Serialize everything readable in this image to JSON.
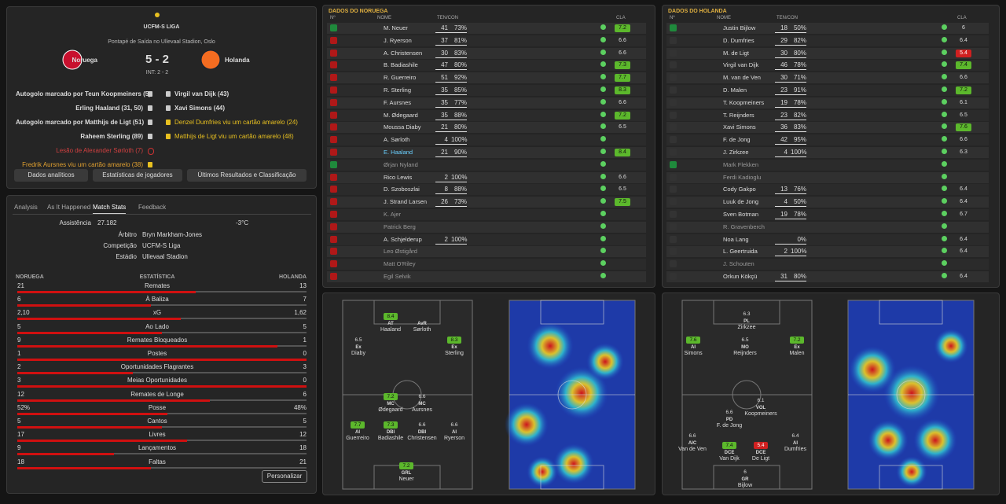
{
  "match": {
    "league": "UCFM-S LIGA",
    "venue": "Pontapé de Saída no Ullevaal Stadion, Oslo",
    "home": "Noruega",
    "away": "Holanda",
    "score": "5 - 2",
    "half_time": "INT: 2 - 2",
    "home_events": [
      {
        "text": "Autogolo marcado por Teun Koopmeiners (5)",
        "icon": "goal"
      },
      {
        "text": "Erling Haaland (31, 50)",
        "icon": "goal"
      },
      {
        "text": "Autogolo marcado por Matthijs de Ligt (51)",
        "icon": "goal"
      },
      {
        "text": "Raheem Sterling (89)",
        "icon": "goal"
      },
      {
        "text": "Lesão de Alexander Sørloth (7)",
        "icon": "injury"
      },
      {
        "text": "Fredrik Aursnes viu um cartão amarelo (38)",
        "icon": "card"
      }
    ],
    "away_events": [
      {
        "text": "Virgil van Dijk (43)",
        "icon": "goal"
      },
      {
        "text": "Xavi Simons (44)",
        "icon": "goal"
      },
      {
        "text": "Denzel Dumfries viu um cartão amarelo (24)",
        "icon": "card"
      },
      {
        "text": "Matthijs de Ligt viu um cartão amarelo (48)",
        "icon": "card"
      }
    ]
  },
  "buttons": [
    "Dados analíticos",
    "Estatísticas de jogadores",
    "Últimos Resultados e Classificação"
  ],
  "tabs": [
    "Analysis",
    "As It Happened",
    "Match Stats",
    "Feedback"
  ],
  "info": {
    "attendance_label": "Assistência",
    "attendance": "27.182",
    "temperature": "-3°C",
    "referee_label": "Árbitro",
    "referee": "Bryn Markham-Jones",
    "competition_label": "Competição",
    "competition": "UCFM-S Liga",
    "stadium_label": "Estádio",
    "stadium": "Ullevaal Stadion"
  },
  "stats": {
    "home_header": "NORUEGA",
    "label_header": "ESTATÍSTICA",
    "away_header": "HOLANDA",
    "rows": [
      {
        "name": "Remates",
        "home": 21,
        "away": 13
      },
      {
        "name": "À Baliza",
        "home": 6,
        "away": 7
      },
      {
        "name": "xG",
        "home": 2.1,
        "away": 1.62,
        "home_label": "2,10",
        "away_label": "1,62"
      },
      {
        "name": "Ao Lado",
        "home": 5,
        "away": 5
      },
      {
        "name": "Remates Bloqueados",
        "home": 9,
        "away": 1
      },
      {
        "name": "Postes",
        "home": 1,
        "away": 0
      },
      {
        "name": "Oportunidades Flagrantes",
        "home": 2,
        "away": 3
      },
      {
        "name": "Meias Oportunidades",
        "home": 3,
        "away": 0
      },
      {
        "name": "Remates de Longe",
        "home": 12,
        "away": 6
      },
      {
        "name": "Posse",
        "home": 52,
        "away": 48,
        "home_label": "52%",
        "away_label": "48%"
      },
      {
        "name": "Cantos",
        "home": 5,
        "away": 5
      },
      {
        "name": "Livres",
        "home": 17,
        "away": 12
      },
      {
        "name": "Lançamentos",
        "home": 9,
        "away": 18
      },
      {
        "name": "Faltas",
        "home": 18,
        "away": 21
      }
    ]
  },
  "customize": "Personalizar",
  "tables": [
    {
      "title": "DADOS DO NORUEGA",
      "columns": [
        "Nº",
        "NOME",
        "TEN/CON",
        "CLA"
      ],
      "players": [
        {
          "name": "M. Neuer",
          "passes": 41,
          "pct": "73%",
          "rating": 7.2
        },
        {
          "name": "J. Ryerson",
          "passes": 37,
          "pct": "81%",
          "rating": 6.6
        },
        {
          "name": "A. Christensen",
          "passes": 30,
          "pct": "83%",
          "rating": 6.6
        },
        {
          "name": "B. Badiashile",
          "passes": 47,
          "pct": "80%",
          "rating": 7.3
        },
        {
          "name": "R. Guerreiro",
          "passes": 51,
          "pct": "92%",
          "rating": 7.7
        },
        {
          "name": "R. Sterling",
          "passes": 35,
          "pct": "85%",
          "rating": 8.3
        },
        {
          "name": "F. Aursnes",
          "passes": 35,
          "pct": "77%",
          "rating": 6.6
        },
        {
          "name": "M. Ødegaard",
          "passes": 35,
          "pct": "88%",
          "rating": 7.2
        },
        {
          "name": "Moussa Diaby",
          "passes": 21,
          "pct": "80%",
          "rating": 6.5
        },
        {
          "name": "A. Sørloth",
          "passes": 4,
          "pct": "100%"
        },
        {
          "name": "E. Haaland",
          "passes": 21,
          "pct": "90%",
          "rating": 8.4
        },
        {
          "name": "Ørjan Nyland"
        },
        {
          "name": "Rico Lewis",
          "passes": 2,
          "pct": "100%",
          "rating": 6.6
        },
        {
          "name": "D. Szoboszlai",
          "passes": 8,
          "pct": "88%",
          "rating": 6.5
        },
        {
          "name": "J. Strand Larsen",
          "passes": 26,
          "pct": "73%",
          "rating": 7.5
        },
        {
          "name": "K. Ajer"
        },
        {
          "name": "Patrick Berg"
        },
        {
          "name": "A. Schjelderup",
          "passes": 2,
          "pct": "100%"
        },
        {
          "name": "Leo Østigård"
        },
        {
          "name": "Matt O'Riley"
        },
        {
          "name": "Egil Selvik"
        }
      ]
    },
    {
      "title": "DADOS DO HOLANDA",
      "columns": [
        "Nº",
        "NOME",
        "TEN/CON",
        "CLA"
      ],
      "players": [
        {
          "name": "Justin Bijlow",
          "passes": 18,
          "pct": "50%",
          "rating": 6.0
        },
        {
          "name": "D. Dumfries",
          "passes": 29,
          "pct": "82%",
          "rating": 6.4
        },
        {
          "name": "M. de Ligt",
          "passes": 30,
          "pct": "80%",
          "rating": 5.4
        },
        {
          "name": "Virgil van Dijk",
          "passes": 46,
          "pct": "78%",
          "rating": 7.4
        },
        {
          "name": "M. van de Ven",
          "passes": 30,
          "pct": "71%",
          "rating": 6.6
        },
        {
          "name": "D. Malen",
          "passes": 23,
          "pct": "91%",
          "rating": 7.2
        },
        {
          "name": "T. Koopmeiners",
          "passes": 19,
          "pct": "78%",
          "rating": 6.1
        },
        {
          "name": "T. Reijnders",
          "passes": 23,
          "pct": "82%",
          "rating": 6.5
        },
        {
          "name": "Xavi Simons",
          "passes": 36,
          "pct": "83%",
          "rating": 7.6
        },
        {
          "name": "F. de Jong",
          "passes": 42,
          "pct": "95%",
          "rating": 6.6
        },
        {
          "name": "J. Zirkzee",
          "passes": 4,
          "pct": "100%",
          "rating": 6.3
        },
        {
          "name": "Mark Flekken"
        },
        {
          "name": "Ferdi Kadioglu"
        },
        {
          "name": "Cody Gakpo",
          "passes": 13,
          "pct": "76%",
          "rating": 6.4
        },
        {
          "name": "Luuk de Jong",
          "passes": 4,
          "pct": "50%",
          "rating": 6.4
        },
        {
          "name": "Sven Botman",
          "passes": 19,
          "pct": "78%",
          "rating": 6.7
        },
        {
          "name": "R. Gravenberch"
        },
        {
          "name": "Noa Lang",
          "pct": "0%",
          "rating": 6.4
        },
        {
          "name": "L. Geertruida",
          "passes": 2,
          "pct": "100%",
          "rating": 6.4
        },
        {
          "name": "J. Schouten"
        },
        {
          "name": "Orkun Kökçü",
          "passes": 31,
          "pct": "80%",
          "rating": 6.4
        }
      ]
    }
  ],
  "lineups": [
    {
      "players": [
        {
          "name": "Haaland",
          "pos": "AT",
          "rating": 8.4
        },
        {
          "name": "Sørloth",
          "pos": "AvR"
        },
        {
          "name": "Diaby",
          "pos": "Ex",
          "rating": 6.5
        },
        {
          "name": "Sterling",
          "pos": "Ex",
          "rating": 8.3
        },
        {
          "name": "Ødegaard",
          "pos": "MC",
          "rating": 7.2
        },
        {
          "name": "Aursnes",
          "pos": "MC",
          "rating": 6.6
        },
        {
          "name": "Guerreiro",
          "pos": "AI",
          "rating": 7.7
        },
        {
          "name": "Badiashile",
          "pos": "DBI",
          "rating": 7.3
        },
        {
          "name": "Christensen",
          "pos": "DBI",
          "rating": 6.6
        },
        {
          "name": "Ryerson",
          "pos": "AI",
          "rating": 6.6
        },
        {
          "name": "Neuer",
          "pos": "GRL",
          "rating": 7.2
        }
      ]
    },
    {
      "players": [
        {
          "name": "Zirkzee",
          "pos": "PL",
          "rating": 6.3
        },
        {
          "name": "Simons",
          "pos": "AI",
          "rating": 7.6
        },
        {
          "name": "Reijnders",
          "pos": "MO",
          "rating": 6.5
        },
        {
          "name": "Malen",
          "pos": "Ex",
          "rating": 7.2
        },
        {
          "name": "Koopmeiners",
          "pos": "VOL",
          "rating": 6.1
        },
        {
          "name": "F. de Jong",
          "pos": "PD",
          "rating": 6.6
        },
        {
          "name": "Van de Ven",
          "pos": "AIC",
          "rating": 6.6
        },
        {
          "name": "Van Dijk",
          "pos": "DCE",
          "rating": 7.4
        },
        {
          "name": "De Ligt",
          "pos": "DCE",
          "rating": 5.4
        },
        {
          "name": "Dumfries",
          "pos": "AI",
          "rating": 6.4
        },
        {
          "name": "Bijlow",
          "pos": "GR",
          "rating": 6.0
        }
      ]
    }
  ]
}
